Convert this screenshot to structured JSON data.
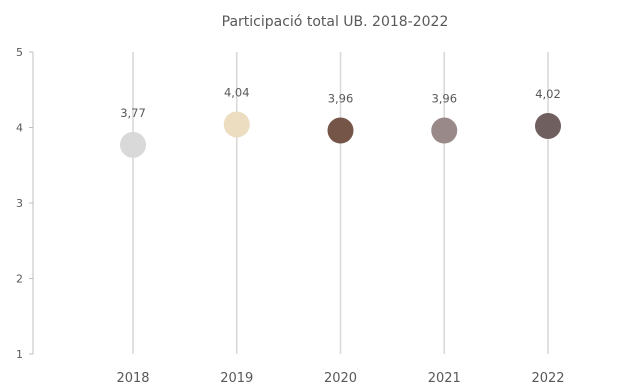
{
  "chart_data": {
    "type": "scatter",
    "title": "Participació total UB. 2018-2022",
    "xlabel": "",
    "ylabel": "",
    "ylim": [
      1,
      5
    ],
    "yticks": [
      "1",
      "2",
      "3",
      "4",
      "5"
    ],
    "categories": [
      "2018",
      "2019",
      "2020",
      "2021",
      "2022"
    ],
    "values": [
      3.77,
      4.04,
      3.96,
      3.96,
      4.02
    ],
    "data_labels": [
      "3,77",
      "4,04",
      "3,96",
      "3,96",
      "4,02"
    ],
    "point_colors": [
      "#d9d9d9",
      "#ecdcc0",
      "#745548",
      "#998988",
      "#6f5f5f"
    ],
    "grid": false,
    "legend": "none"
  }
}
